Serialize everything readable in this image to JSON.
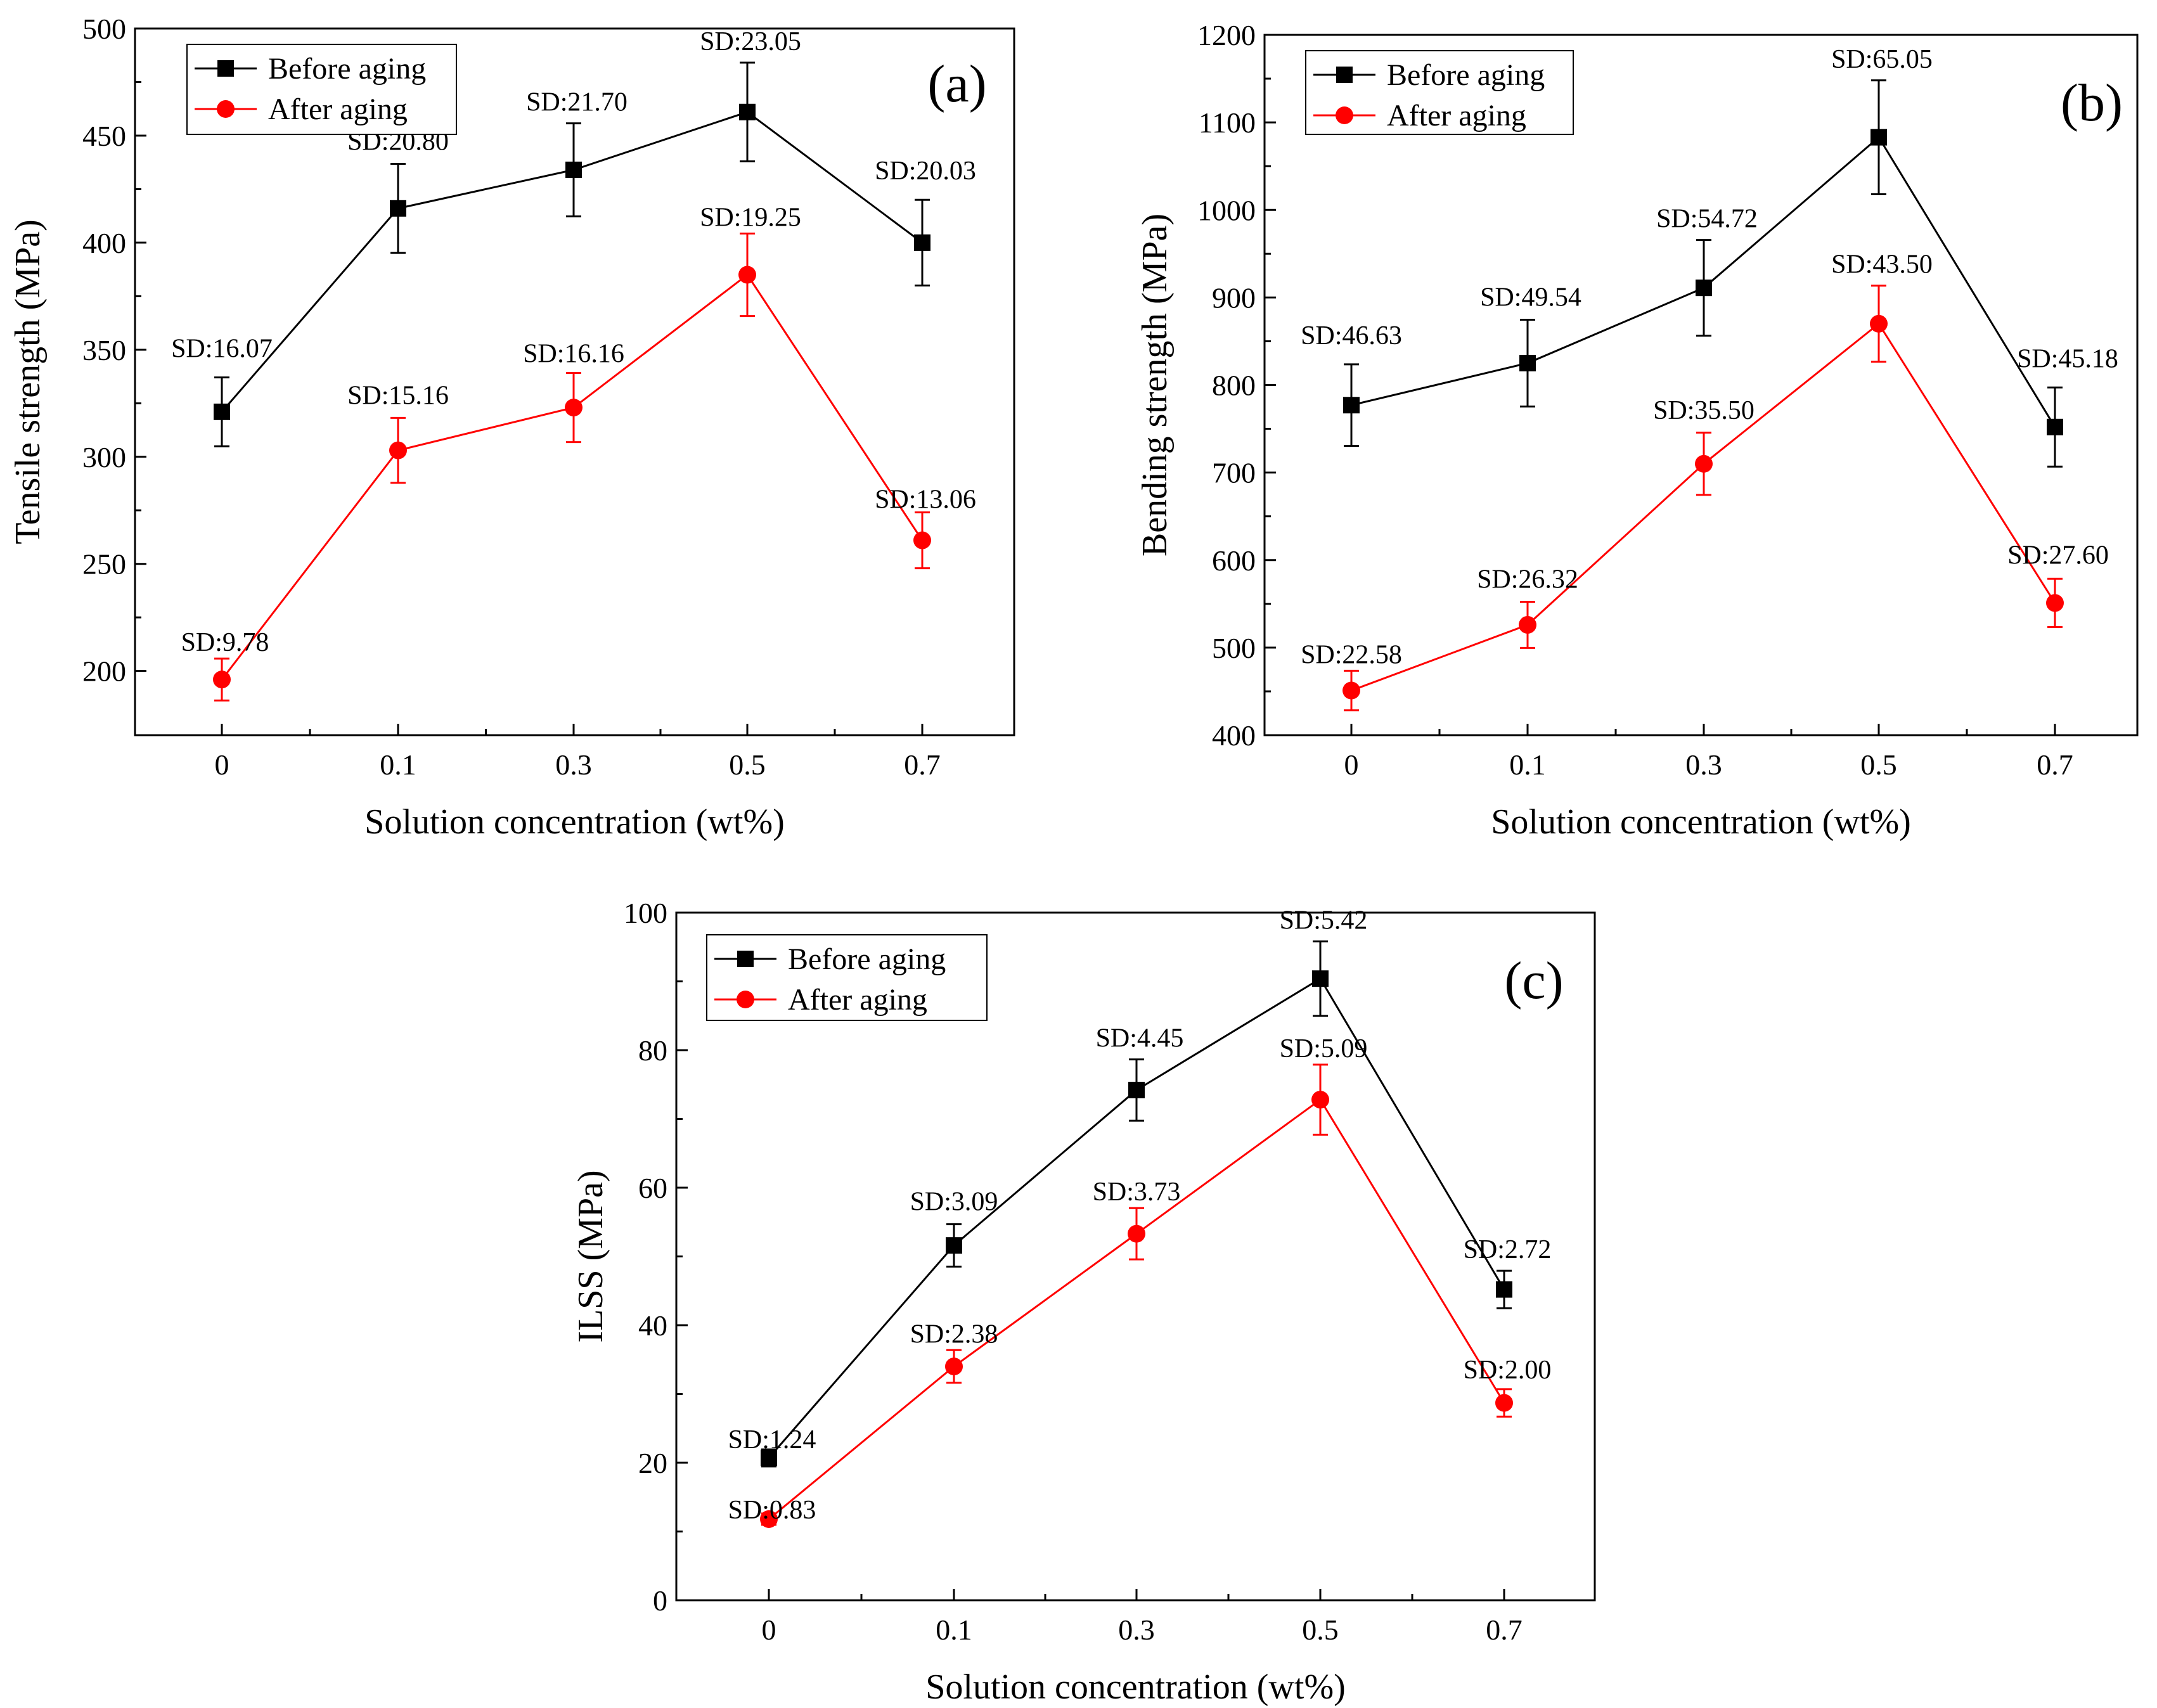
{
  "chart_data": [
    {
      "type": "line",
      "panel_label": "(a)",
      "xlabel": "Solution concentration (wt%)",
      "ylabel": "Tensile strength (MPa)",
      "categories": [
        "0",
        "0.1",
        "0.3",
        "0.5",
        "0.7"
      ],
      "yticks": [
        "200",
        "250",
        "300",
        "350",
        "400",
        "450",
        "500"
      ],
      "ylim": [
        170,
        500
      ],
      "series": [
        {
          "name": "Before aging",
          "color": "#000000",
          "marker": "square",
          "values": [
            321,
            416,
            434,
            461,
            400
          ],
          "errors": [
            16.07,
            20.8,
            21.7,
            23.05,
            20.03
          ],
          "sd_labels": [
            "SD:16.07",
            "SD:20.80",
            "SD:21.70",
            "SD:23.05",
            "SD:20.03"
          ]
        },
        {
          "name": "After  aging",
          "color": "#ff0000",
          "marker": "circle",
          "values": [
            196,
            303,
            323,
            385,
            261
          ],
          "errors": [
            9.78,
            15.16,
            16.16,
            19.25,
            13.06
          ],
          "sd_labels": [
            "SD:9.78",
            "SD:15.16",
            "SD:16.16",
            "SD:19.25",
            "SD:13.06"
          ]
        }
      ],
      "legend_position": "top-left"
    },
    {
      "type": "line",
      "panel_label": "(b)",
      "xlabel": "Solution concentration (wt%)",
      "ylabel": "Bending strength (MPa)",
      "categories": [
        "0",
        "0.1",
        "0.3",
        "0.5",
        "0.7"
      ],
      "yticks": [
        "400",
        "500",
        "600",
        "700",
        "800",
        "900",
        "1000",
        "1100",
        "1200"
      ],
      "ylim": [
        400,
        1200
      ],
      "series": [
        {
          "name": "Before aging",
          "color": "#000000",
          "marker": "square",
          "values": [
            777,
            825,
            911,
            1083,
            752
          ],
          "errors": [
            46.63,
            49.54,
            54.72,
            65.05,
            45.18
          ],
          "sd_labels": [
            "SD:46.63",
            "SD:49.54",
            "SD:54.72",
            "SD:65.05",
            "SD:45.18"
          ]
        },
        {
          "name": "After  aging",
          "color": "#ff0000",
          "marker": "circle",
          "values": [
            451,
            526,
            710,
            870,
            551
          ],
          "errors": [
            22.58,
            26.32,
            35.5,
            43.5,
            27.6
          ],
          "sd_labels": [
            "SD:22.58",
            "SD:26.32",
            "SD:35.50",
            "SD:43.50",
            "SD:27.60"
          ]
        }
      ],
      "legend_position": "top-left"
    },
    {
      "type": "line",
      "panel_label": "(c)",
      "xlabel": "Solution concentration (wt%)",
      "ylabel": "ILSS (MPa)",
      "categories": [
        "0",
        "0.1",
        "0.3",
        "0.5",
        "0.7"
      ],
      "yticks": [
        "0",
        "20",
        "40",
        "60",
        "80",
        "100"
      ],
      "ylim": [
        0,
        100
      ],
      "series": [
        {
          "name": "Before aging",
          "color": "#000000",
          "marker": "square",
          "values": [
            20.7,
            51.6,
            74.2,
            90.4,
            45.2
          ],
          "errors": [
            1.24,
            3.09,
            4.45,
            5.42,
            2.72
          ],
          "sd_labels": [
            "SD:1.24",
            "SD:3.09",
            "SD:4.45",
            "SD:5.42",
            "SD:2.72"
          ]
        },
        {
          "name": "After  aging",
          "color": "#ff0000",
          "marker": "circle",
          "values": [
            11.8,
            34.0,
            53.3,
            72.8,
            28.7
          ],
          "errors": [
            0.83,
            2.38,
            3.73,
            5.09,
            2.0
          ],
          "sd_labels": [
            "SD:0.83",
            "SD:2.38",
            "SD:3.73",
            "SD:5.09",
            "SD:2.00"
          ]
        }
      ],
      "legend_position": "top-left"
    }
  ]
}
